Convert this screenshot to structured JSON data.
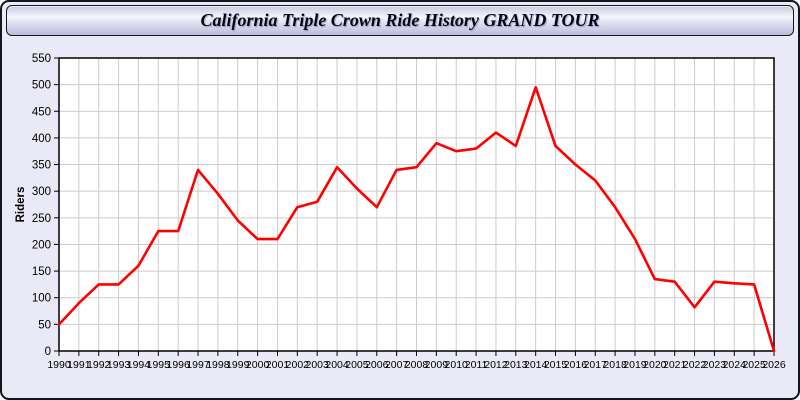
{
  "header": {
    "title": "California Triple Crown Ride History GRAND TOUR"
  },
  "colors": {
    "page_background": "#e9e9f8",
    "titlebar_gradient_top": "#c7c7e2",
    "titlebar_gradient_mid": "#f6f6fd",
    "titlebar_gradient_bottom": "#bcbcdc",
    "plot_background": "#ffffff",
    "grid_color": "#cccccc",
    "axis_color": "#000000",
    "line_color": "#ff0000"
  },
  "chart_data": {
    "type": "line",
    "title": "California Triple Crown Ride History GRAND TOUR",
    "xlabel": "",
    "ylabel": "Riders",
    "ylim": [
      0,
      550
    ],
    "ytick_step": 50,
    "grid": true,
    "legend": "none",
    "line_color": "#ff0000",
    "grid_color": "#cccccc",
    "x": [
      1990,
      1991,
      1992,
      1993,
      1994,
      1995,
      1996,
      1997,
      1998,
      1999,
      2000,
      2001,
      2002,
      2003,
      2004,
      2005,
      2006,
      2007,
      2008,
      2009,
      2010,
      2011,
      2012,
      2013,
      2014,
      2015,
      2016,
      2017,
      2018,
      2019,
      2020,
      2021,
      2022,
      2023,
      2024,
      2025,
      2026
    ],
    "series": [
      {
        "name": "Riders",
        "values": [
          50,
          90,
          125,
          125,
          160,
          225,
          225,
          340,
          295,
          245,
          210,
          210,
          270,
          280,
          345,
          305,
          270,
          340,
          345,
          390,
          375,
          380,
          410,
          385,
          495,
          385,
          350,
          320,
          270,
          210,
          135,
          130,
          82,
          130,
          127,
          125,
          0
        ]
      }
    ]
  }
}
